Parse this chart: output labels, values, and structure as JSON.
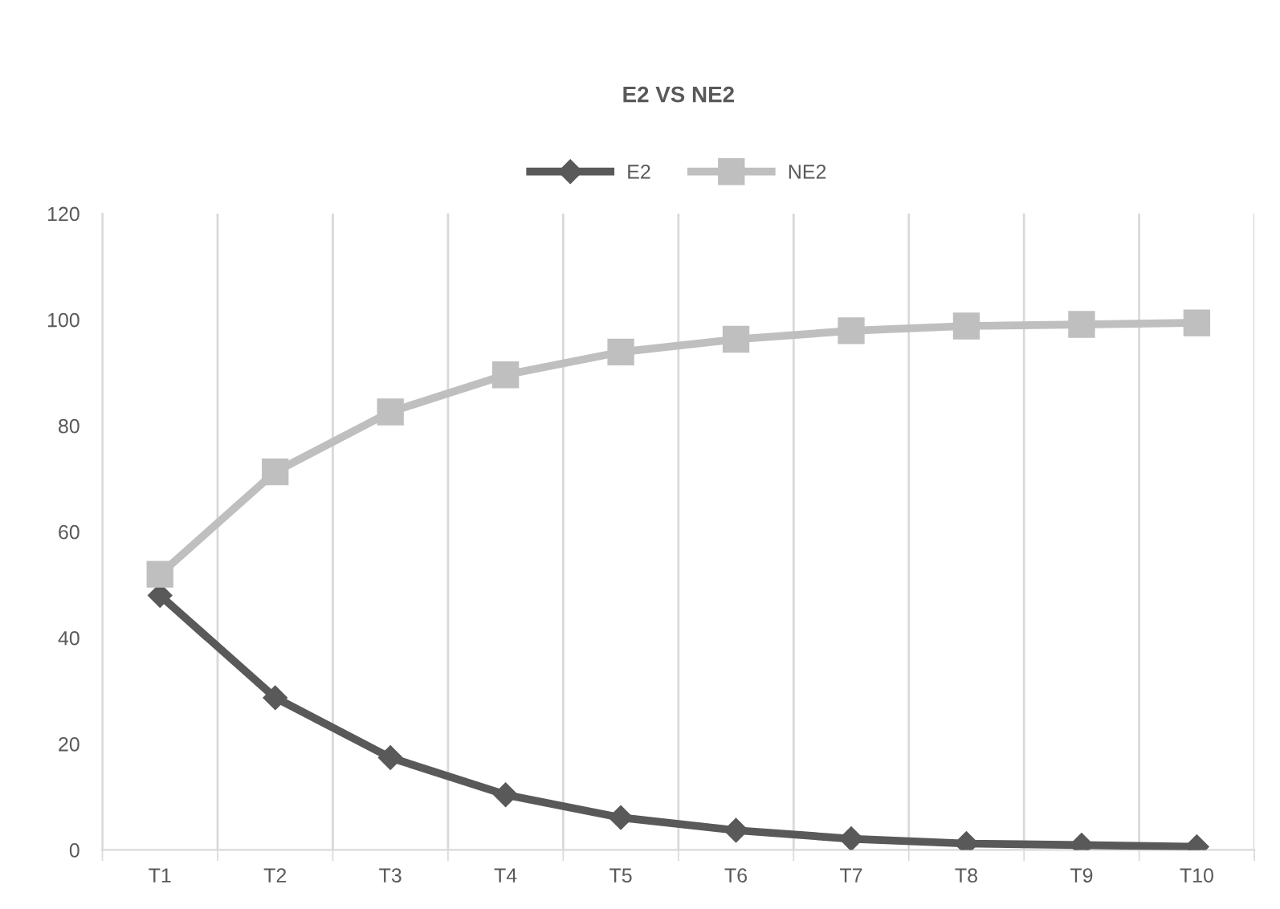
{
  "chart_data": {
    "type": "line",
    "title": "E2 VS NE2",
    "categories": [
      "T1",
      "T2",
      "T3",
      "T4",
      "T5",
      "T6",
      "T7",
      "T8",
      "T9",
      "T10"
    ],
    "series": [
      {
        "name": "E2",
        "color": "#595959",
        "marker": "diamond",
        "values": [
          48,
          28.7,
          17.4,
          10.4,
          6.1,
          3.7,
          2.1,
          1.2,
          0.9,
          0.6
        ]
      },
      {
        "name": "NE2",
        "color": "#bfbfbf",
        "marker": "square",
        "values": [
          52,
          71.3,
          82.6,
          89.6,
          93.9,
          96.3,
          97.9,
          98.8,
          99.1,
          99.4
        ]
      }
    ],
    "ylim": [
      0,
      120
    ],
    "yticks": [
      0,
      20,
      40,
      60,
      80,
      100,
      120
    ],
    "grid": "x",
    "legend": "top",
    "line_style": "solid"
  }
}
